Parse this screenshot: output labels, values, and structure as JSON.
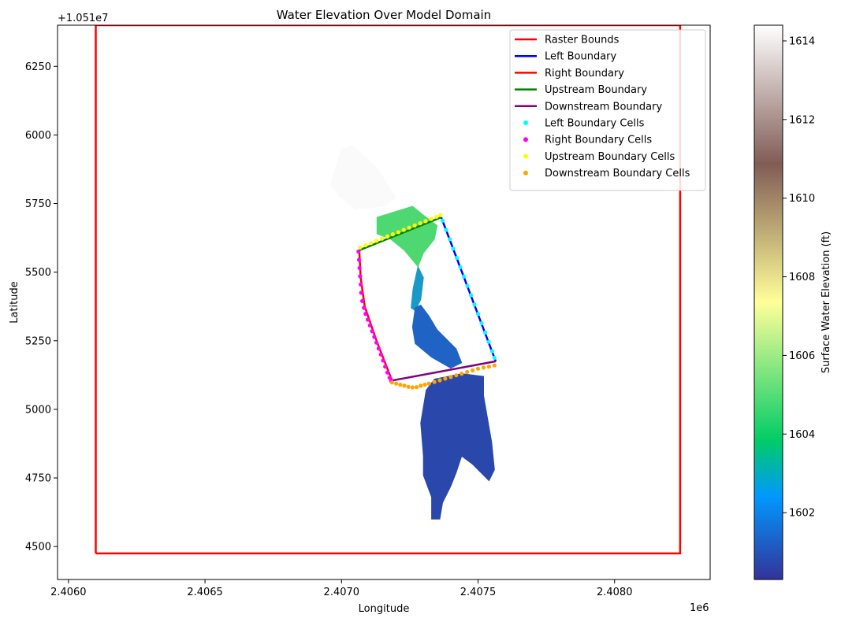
{
  "chart_data": {
    "type": "scatter",
    "title": "Water Elevation Over Model Domain",
    "xlabel": "Longitude",
    "ylabel": "Latitude",
    "x_offset_label": "1e6",
    "y_offset_label": "+1.051e7",
    "xlim": [
      2405960,
      2408350
    ],
    "ylim": [
      4380,
      6400
    ],
    "x_ticks": [
      2406000,
      2406500,
      2407000,
      2407500,
      2408000
    ],
    "x_tick_labels": [
      "2.4060",
      "2.4065",
      "2.4070",
      "2.4075",
      "2.4080"
    ],
    "y_ticks": [
      4500,
      4750,
      5000,
      5250,
      5500,
      5750,
      6000,
      6250
    ],
    "y_tick_labels": [
      "4500",
      "4750",
      "5000",
      "5250",
      "5500",
      "5750",
      "6000",
      "6250"
    ],
    "grid": false,
    "legend_position": "top-right",
    "colorbar": {
      "label": "Surface Water Elevation (ft)",
      "range": [
        1600.3,
        1614.4
      ],
      "ticks": [
        1602,
        1604,
        1606,
        1608,
        1610,
        1612,
        1614
      ],
      "tick_labels": [
        "1602",
        "1604",
        "1606",
        "1608",
        "1610",
        "1612",
        "1614"
      ],
      "colormap": "terrain",
      "stops": [
        {
          "v": 0.0,
          "color": "#333399"
        },
        {
          "v": 0.15,
          "color": "#0098fe"
        },
        {
          "v": 0.25,
          "color": "#00cc66"
        },
        {
          "v": 0.5,
          "color": "#ffff99"
        },
        {
          "v": 0.75,
          "color": "#805c55"
        },
        {
          "v": 1.0,
          "color": "#ffffff"
        }
      ]
    },
    "raster_regions": [
      {
        "name": "upper-dry",
        "color": "#fafafa",
        "points": [
          [
            2406960,
            5820
          ],
          [
            2407000,
            5950
          ],
          [
            2407040,
            5960
          ],
          [
            2407130,
            5880
          ],
          [
            2407200,
            5770
          ],
          [
            2407150,
            5740
          ],
          [
            2407050,
            5730
          ],
          [
            2406990,
            5780
          ]
        ]
      },
      {
        "name": "upper-pool",
        "color": "#4ed872",
        "points": [
          [
            2407130,
            5700
          ],
          [
            2407260,
            5740
          ],
          [
            2407310,
            5700
          ],
          [
            2407350,
            5670
          ],
          [
            2407340,
            5620
          ],
          [
            2407300,
            5570
          ],
          [
            2407280,
            5520
          ],
          [
            2407230,
            5580
          ],
          [
            2407180,
            5620
          ],
          [
            2407130,
            5640
          ]
        ]
      },
      {
        "name": "channel",
        "color": "#1a98c8",
        "points": [
          [
            2407280,
            5520
          ],
          [
            2407300,
            5480
          ],
          [
            2407290,
            5400
          ],
          [
            2407270,
            5360
          ],
          [
            2407255,
            5370
          ],
          [
            2407262,
            5440
          ]
        ]
      },
      {
        "name": "mid-channel",
        "color": "#1f64c4",
        "points": [
          [
            2407270,
            5370
          ],
          [
            2407260,
            5300
          ],
          [
            2407270,
            5240
          ],
          [
            2407330,
            5190
          ],
          [
            2407400,
            5150
          ],
          [
            2407440,
            5170
          ],
          [
            2407420,
            5220
          ],
          [
            2407350,
            5290
          ],
          [
            2407320,
            5340
          ],
          [
            2407290,
            5380
          ]
        ]
      },
      {
        "name": "lower-reach",
        "color": "#2a48ac",
        "points": [
          [
            2407310,
            5070
          ],
          [
            2407340,
            5110
          ],
          [
            2407440,
            5130
          ],
          [
            2407520,
            5120
          ],
          [
            2407520,
            5050
          ],
          [
            2407550,
            4880
          ],
          [
            2407560,
            4780
          ],
          [
            2407540,
            4740
          ],
          [
            2407480,
            4800
          ],
          [
            2407440,
            4830
          ],
          [
            2407420,
            4770
          ],
          [
            2407400,
            4720
          ],
          [
            2407370,
            4660
          ],
          [
            2407360,
            4600
          ],
          [
            2407330,
            4600
          ],
          [
            2407330,
            4680
          ],
          [
            2407300,
            4760
          ],
          [
            2407300,
            4830
          ],
          [
            2407290,
            4950
          ]
        ]
      }
    ],
    "series": [
      {
        "name": "Raster Bounds",
        "kind": "line",
        "color": "#ff0000",
        "x": [
          2406100,
          2408240,
          2408240,
          2406100,
          2406100
        ],
        "y": [
          4475,
          4475,
          6400,
          6400,
          4475
        ]
      },
      {
        "name": "Left Boundary",
        "kind": "line",
        "color": "#0000ff",
        "x": [
          2407365,
          2407565
        ],
        "y": [
          5700,
          5175
        ]
      },
      {
        "name": "Right Boundary",
        "kind": "line",
        "color": "#ff0000",
        "x": [
          2407065,
          2407070,
          2407085,
          2407130,
          2407185
        ],
        "y": [
          5580,
          5480,
          5375,
          5245,
          5105
        ]
      },
      {
        "name": "Upstream Boundary",
        "kind": "line",
        "color": "#008000",
        "x": [
          2407065,
          2407365
        ],
        "y": [
          5580,
          5700
        ]
      },
      {
        "name": "Downstream Boundary",
        "kind": "line",
        "color": "#800080",
        "x": [
          2407185,
          2407565
        ],
        "y": [
          5105,
          5175
        ]
      },
      {
        "name": "Left Boundary Cells",
        "kind": "scatter",
        "color": "#00ffff",
        "x": [
          2407370,
          2407383,
          2407396,
          2407409,
          2407422,
          2407435,
          2407448,
          2407461,
          2407474,
          2407487,
          2407500,
          2407513,
          2407526,
          2407539,
          2407552,
          2407560
        ],
        "y": [
          5688,
          5654,
          5620,
          5586,
          5552,
          5518,
          5484,
          5450,
          5416,
          5382,
          5348,
          5314,
          5280,
          5246,
          5212,
          5188
        ]
      },
      {
        "name": "Right Boundary Cells",
        "kind": "scatter",
        "color": "#ff00ff",
        "x": [
          2407062,
          2407064,
          2407066,
          2407068,
          2407070,
          2407072,
          2407076,
          2407082,
          2407088,
          2407096,
          2407104,
          2407112,
          2407120,
          2407128,
          2407136,
          2407144,
          2407152,
          2407160,
          2407168,
          2407176,
          2407182
        ],
        "y": [
          5575,
          5545,
          5515,
          5485,
          5455,
          5425,
          5395,
          5370,
          5348,
          5327,
          5306,
          5285,
          5264,
          5243,
          5222,
          5200,
          5178,
          5156,
          5134,
          5115,
          5103
        ]
      },
      {
        "name": "Upstream Boundary Cells",
        "kind": "scatter",
        "color": "#ffff00",
        "x": [
          2407068,
          2407088,
          2407108,
          2407128,
          2407148,
          2407168,
          2407188,
          2407208,
          2407228,
          2407248,
          2407268,
          2407288,
          2407308,
          2407328,
          2407348,
          2407362
        ],
        "y": [
          5590,
          5598,
          5606,
          5614,
          5622,
          5630,
          5638,
          5646,
          5654,
          5662,
          5670,
          5678,
          5686,
          5694,
          5702,
          5708
        ]
      },
      {
        "name": "Downstream Boundary Cells",
        "kind": "scatter",
        "color": "#ffa500",
        "x": [
          2407185,
          2407200,
          2407215,
          2407230,
          2407245,
          2407260,
          2407275,
          2407290,
          2407305,
          2407320,
          2407340,
          2407360,
          2407380,
          2407400,
          2407420,
          2407440,
          2407460,
          2407480,
          2407500,
          2407520,
          2407540,
          2407560
        ],
        "y": [
          5098,
          5094,
          5090,
          5086,
          5082,
          5080,
          5081,
          5086,
          5090,
          5094,
          5100,
          5106,
          5112,
          5118,
          5124,
          5130,
          5136,
          5142,
          5148,
          5152,
          5156,
          5160
        ]
      }
    ]
  }
}
